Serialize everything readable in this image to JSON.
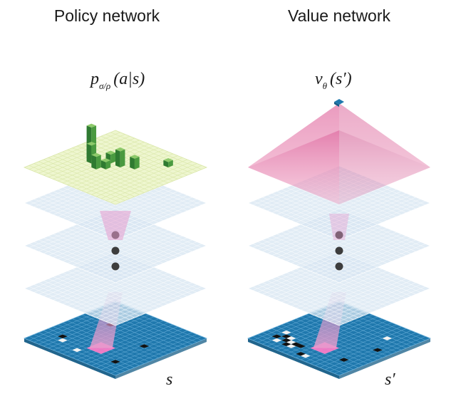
{
  "titles": {
    "policy": "Policy network",
    "value": "Value network"
  },
  "formulas": {
    "policy": {
      "symbol": "p",
      "subscript": "σ/ρ",
      "args": "(a|s)"
    },
    "value": {
      "symbol": "v",
      "subscript": "θ",
      "args": "(s′)"
    }
  },
  "state_labels": {
    "policy": "s",
    "value": "s′"
  },
  "colors": {
    "board_blue": "#1f78ad",
    "board_grid": "#6fb3dc",
    "hidden_layer": "#d7e6f2",
    "hidden_grid": "#ffffff",
    "policy_output": "#eef6cf",
    "policy_grid": "#d9e6a8",
    "policy_bars": "#3e8c39",
    "value_pyramid": "#e58db5",
    "value_output_cell": "#1f78ad",
    "receptive_field": "#e79ccd",
    "ellipsis_dots": "#3d3d3d",
    "stone_black": "#111111",
    "stone_white": "#f2f2f2"
  },
  "policy_bar_heights": [
    0.9,
    0.5,
    0.25,
    0.35,
    0.2,
    0.45,
    0.15,
    0.3
  ]
}
